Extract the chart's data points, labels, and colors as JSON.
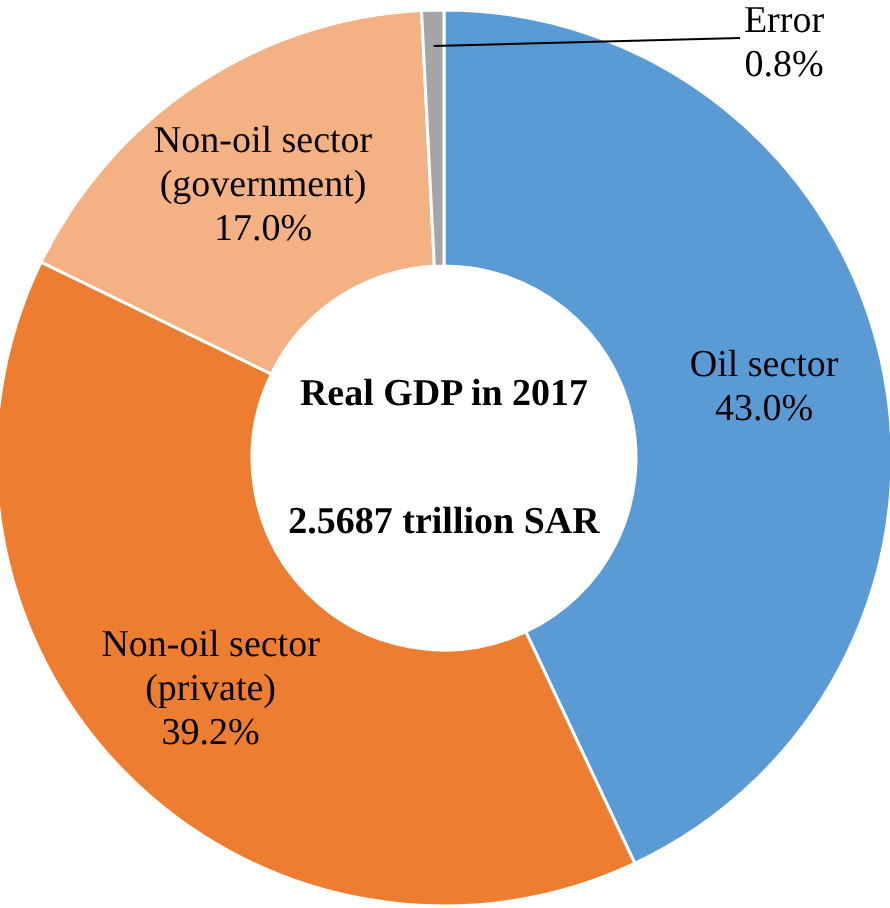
{
  "chart_data": {
    "type": "donut",
    "title": "Real GDP in 2017",
    "subtitle": "2.5687 trillion SAR",
    "categories": [
      "Oil sector",
      "Non-oil sector (private)",
      "Non-oil sector (government)",
      "Error"
    ],
    "values": [
      43.0,
      39.2,
      17.0,
      0.8
    ],
    "colors": [
      "#5b9bd5",
      "#ed7d31",
      "#f4b183",
      "#a5a5a5"
    ],
    "value_labels": [
      "43.0%",
      "39.2%",
      "17.0%",
      "0.8%"
    ],
    "legend": false
  }
}
